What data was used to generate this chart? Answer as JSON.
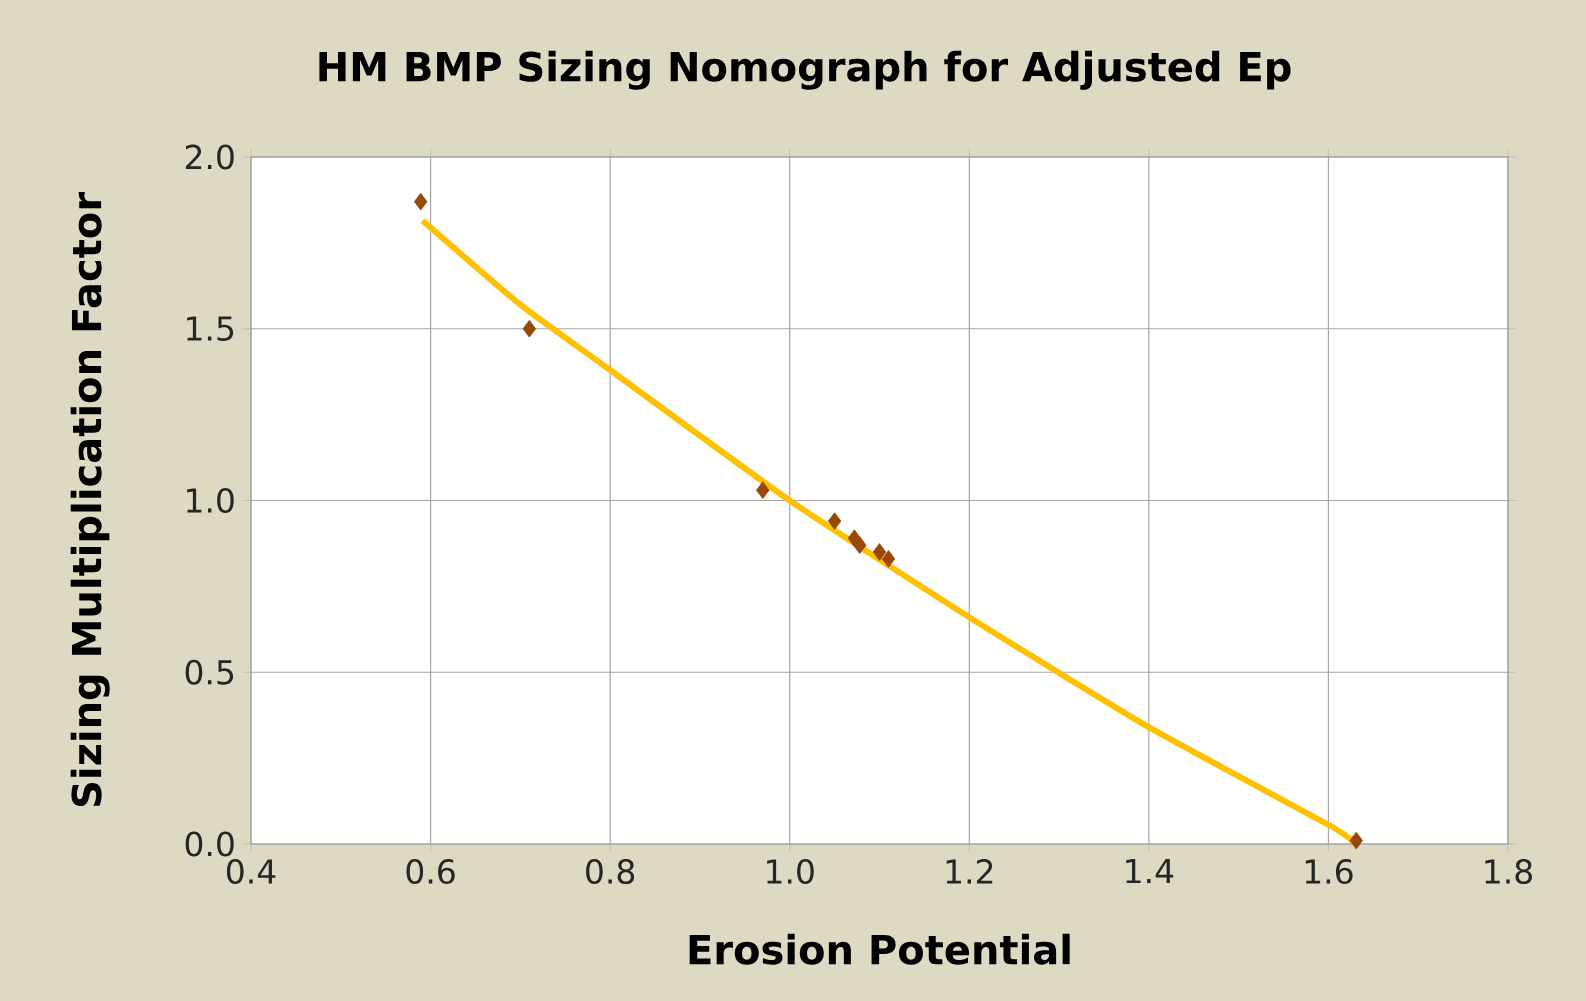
{
  "chart_data": {
    "type": "scatter",
    "title": "HM BMP Sizing Nomograph for Adjusted Ep",
    "xlabel": "Erosion Potential",
    "ylabel": "Sizing Multiplication Factor",
    "xlim": [
      0.4,
      1.8
    ],
    "ylim": [
      0.0,
      2.0
    ],
    "xticks": [
      0.4,
      0.6,
      0.8,
      {
        "value": 1.0,
        "label": "1.0"
      },
      1.2,
      1.4,
      1.6,
      1.8
    ],
    "yticks": [
      {
        "value": 0.0,
        "label": "0.0"
      },
      0.5,
      {
        "value": 1.0,
        "label": "1.0"
      },
      1.5,
      {
        "value": 2.0,
        "label": "2.0"
      }
    ],
    "grid": true,
    "marker": "diamond",
    "series": [
      {
        "color": "#984807",
        "x": [
          0.589,
          0.71,
          0.97,
          1.05,
          1.072,
          1.078,
          1.1,
          1.11,
          1.631
        ],
        "values": [
          1.87,
          1.5,
          1.03,
          0.94,
          0.89,
          0.87,
          0.85,
          0.83,
          0.01
        ]
      },
      {
        "type": "line",
        "color": "#ffc000",
        "marker": "none",
        "x": [
          0.591,
          0.7,
          0.8,
          1.0,
          1.2,
          1.4,
          1.6,
          1.628
        ],
        "values": [
          1.815,
          1.57,
          1.38,
          1.0,
          0.66,
          0.34,
          0.056,
          0.006
        ]
      }
    ]
  }
}
